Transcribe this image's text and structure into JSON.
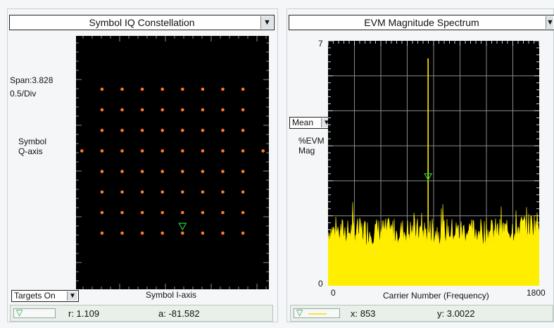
{
  "left": {
    "title": "Symbol IQ Constellation",
    "span_label": "Span:3.828",
    "div_label": "0.5/Div",
    "q_axis_label_1": "Symbol",
    "q_axis_label_2": "Q-axis",
    "i_axis_label": "Symbol I-axis",
    "targets_select": "Targets On",
    "readout_r": "r: 1.109",
    "readout_a": "a: -81.582",
    "dropdown_icon": "triangle-down"
  },
  "right": {
    "title": "EVM Magnitude Spectrum",
    "mean_select": "Mean",
    "ylabel_1": "%EVM",
    "ylabel_2": "Mag",
    "xlabel": "Carrier Number (Frequency)",
    "y_top": "7",
    "y_bottom": "0",
    "x_left": "0",
    "x_right": "1800",
    "readout_x": "x: 853",
    "readout_y": "y: 3.0022"
  },
  "colors": {
    "plot_bg": "#000000",
    "grid": "#8a8a8a",
    "constellation_point": "#ff7a2a",
    "spectrum_fill": "#ffee00",
    "marker": "#1fbf3a"
  },
  "chart_data": [
    {
      "type": "scatter",
      "i_levels": [
        -7,
        -5,
        -3,
        -1,
        1,
        3,
        5,
        7
      ],
      "q_levels": [
        -7,
        -5,
        -3,
        -1,
        1,
        3,
        5,
        7
      ],
      "extra_points": [
        [
          -9,
          1
        ],
        [
          9,
          1
        ]
      ],
      "marker": {
        "i": 1,
        "q": -7
      },
      "span": 3.828,
      "scale_per_div": 0.5
    },
    {
      "type": "area",
      "xlim": [
        0,
        1800
      ],
      "ylim": [
        0,
        7
      ],
      "baseline_mean": 1.55,
      "spike": {
        "x": 853,
        "y": 6.5
      },
      "marker": {
        "x": 853,
        "y": 3.0022
      }
    }
  ]
}
